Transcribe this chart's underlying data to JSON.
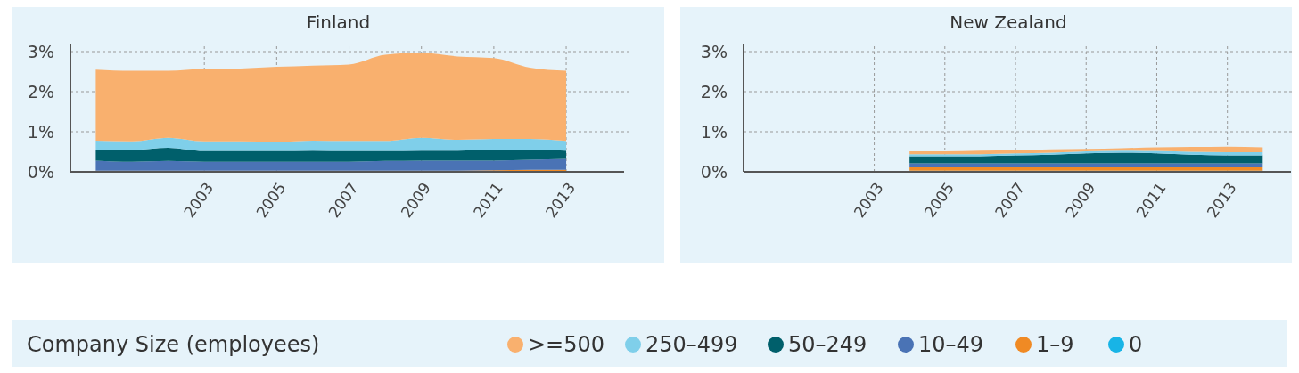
{
  "chart_data": [
    {
      "type": "area",
      "title": "Finland",
      "stacked": true,
      "grid": true,
      "legend": "bottom",
      "legend_title": "Company Size (employees)",
      "x": [
        2000,
        2001,
        2002,
        2003,
        2004,
        2005,
        2006,
        2007,
        2008,
        2009,
        2010,
        2011,
        2012,
        2013
      ],
      "xlim": [
        1999.3,
        2014.6
      ],
      "xticks": [
        2003,
        2005,
        2007,
        2009,
        2011,
        2013
      ],
      "ylim": [
        0,
        3.2
      ],
      "yticks": [
        {
          "value": 0,
          "label": "0%"
        },
        {
          "value": 1,
          "label": "1%"
        },
        {
          "value": 2,
          "label": "2%"
        },
        {
          "value": 3,
          "label": "3%"
        }
      ],
      "series": [
        {
          "name": "0",
          "color": "#18b4e6",
          "values": [
            null,
            null,
            null,
            null,
            null,
            null,
            null,
            null,
            null,
            null,
            null,
            null,
            null,
            null
          ]
        },
        {
          "name": "1–9",
          "color": "#f08a24",
          "values": [
            0.03,
            0.03,
            0.03,
            0.03,
            0.03,
            0.03,
            0.03,
            0.03,
            0.03,
            0.03,
            0.03,
            0.04,
            0.05,
            0.05
          ]
        },
        {
          "name": "10–49",
          "color": "#4a73b5",
          "values": [
            0.25,
            0.22,
            0.24,
            0.22,
            0.22,
            0.22,
            0.22,
            0.22,
            0.24,
            0.25,
            0.25,
            0.24,
            0.25,
            0.27
          ]
        },
        {
          "name": "50–249",
          "color": "#005f6b",
          "values": [
            0.27,
            0.3,
            0.33,
            0.27,
            0.27,
            0.27,
            0.28,
            0.27,
            0.25,
            0.25,
            0.25,
            0.27,
            0.25,
            0.21
          ]
        },
        {
          "name": "250–499",
          "color": "#7fcfea",
          "values": [
            0.23,
            0.21,
            0.25,
            0.24,
            0.24,
            0.23,
            0.25,
            0.25,
            0.25,
            0.32,
            0.27,
            0.27,
            0.27,
            0.24
          ]
        },
        {
          "name": ">=500",
          "color": "#f9b06e",
          "values": [
            1.77,
            1.76,
            1.67,
            1.81,
            1.82,
            1.87,
            1.87,
            1.91,
            2.15,
            2.12,
            2.08,
            2.02,
            1.78,
            1.75
          ]
        }
      ]
    },
    {
      "type": "area",
      "title": "New Zealand",
      "stacked": true,
      "grid": true,
      "x": [
        2004,
        2005,
        2006,
        2007,
        2008,
        2009,
        2010,
        2011,
        2012,
        2013,
        2014
      ],
      "xlim": [
        1999.3,
        2014.8
      ],
      "xticks": [
        2003,
        2005,
        2007,
        2009,
        2011,
        2013
      ],
      "ylim": [
        0,
        3.2
      ],
      "yticks": [
        {
          "value": 0,
          "label": "0%"
        },
        {
          "value": 1,
          "label": "1%"
        },
        {
          "value": 2,
          "label": "2%"
        },
        {
          "value": 3,
          "label": "3%"
        }
      ],
      "series": [
        {
          "color": "#18b4e6",
          "values": [
            0.03,
            0.03,
            0.03,
            0.03,
            0.03,
            0.03,
            0.03,
            0.03,
            0.03,
            0.03,
            0.03
          ]
        },
        {
          "color": "#f08a24",
          "values": [
            0.08,
            0.08,
            0.08,
            0.08,
            0.08,
            0.08,
            0.08,
            0.08,
            0.08,
            0.08,
            0.08
          ]
        },
        {
          "color": "#4a73b5",
          "values": [
            0.1,
            0.1,
            0.1,
            0.1,
            0.1,
            0.1,
            0.1,
            0.1,
            0.1,
            0.1,
            0.1
          ]
        },
        {
          "color": "#005f6b",
          "values": [
            0.18,
            0.18,
            0.18,
            0.2,
            0.22,
            0.25,
            0.27,
            0.25,
            0.22,
            0.2,
            0.2
          ]
        },
        {
          "color": "#7fcfea",
          "values": [
            0.05,
            0.05,
            0.05,
            0.05,
            0.05,
            0.05,
            0.05,
            0.06,
            0.07,
            0.08,
            0.08
          ]
        },
        {
          "color": "#f9b06e",
          "values": [
            0.07,
            0.07,
            0.09,
            0.08,
            0.08,
            0.06,
            0.06,
            0.09,
            0.12,
            0.14,
            0.12
          ]
        }
      ]
    }
  ]
}
